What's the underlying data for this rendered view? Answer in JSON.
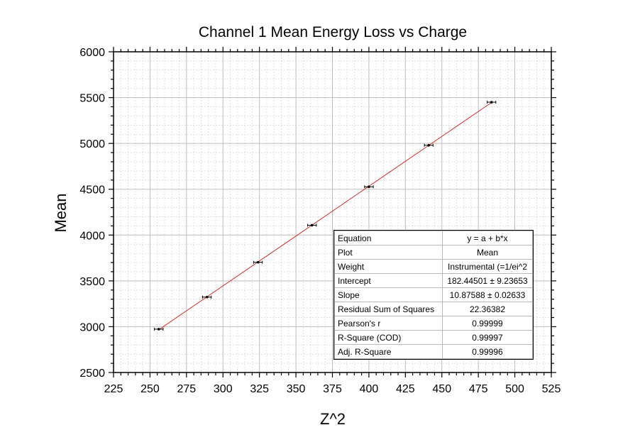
{
  "chart_data": {
    "type": "scatter",
    "title": "Channel 1 Mean Energy Loss vs Charge",
    "xlabel": "Z^2",
    "ylabel": "Mean",
    "xlim": [
      225,
      525
    ],
    "ylim": [
      2500,
      6000
    ],
    "x_ticks": [
      "225",
      "250",
      "275",
      "300",
      "325",
      "350",
      "375",
      "400",
      "425",
      "450",
      "475",
      "500",
      "525"
    ],
    "y_ticks": [
      "2500",
      "3000",
      "3500",
      "4000",
      "4500",
      "5000",
      "5500",
      "6000"
    ],
    "grid": true,
    "series": [
      {
        "x": [
          256,
          289,
          324,
          361,
          400,
          441,
          484
        ],
        "y": [
          2973,
          3323,
          3703,
          4107,
          4527,
          4980,
          5450
        ],
        "x_error": [
          2,
          2,
          2,
          2,
          2,
          2,
          2
        ],
        "color": "#000000"
      }
    ],
    "fit_line": {
      "intercept": 182.44501,
      "slope": 10.87588,
      "x_range": [
        256,
        484
      ],
      "color": "#d62728"
    },
    "fit_table": [
      {
        "label": "Equation",
        "value": "y = a + b*x"
      },
      {
        "label": "Plot",
        "value": "Mean"
      },
      {
        "label": "Weight",
        "value": "Instrumental (=1/ei^2"
      },
      {
        "label": "Intercept",
        "value": "182.44501 ± 9.23653"
      },
      {
        "label": "Slope",
        "value": "10.87588 ± 0.02633"
      },
      {
        "label": "Residual Sum of Squares",
        "value": "22.36382"
      },
      {
        "label": "Pearson's r",
        "value": "0.99999"
      },
      {
        "label": "R-Square (COD)",
        "value": "0.99997"
      },
      {
        "label": "Adj. R-Square",
        "value": "0.99996"
      }
    ]
  }
}
